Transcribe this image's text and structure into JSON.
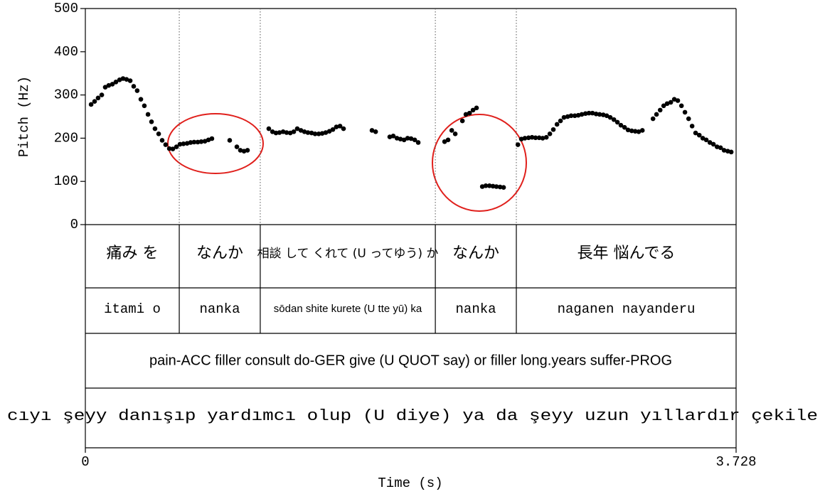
{
  "chart_data": {
    "type": "scatter",
    "xlabel": "Time (s)",
    "ylabel": "Pitch (Hz)",
    "xlim": [
      0,
      3.728
    ],
    "xticks": [
      0,
      3.728
    ],
    "ylim": [
      0,
      500
    ],
    "yticks": [
      0,
      100,
      200,
      300,
      400,
      500
    ],
    "color": "#000000",
    "x": [
      0.033,
      0.053,
      0.073,
      0.094,
      0.114,
      0.134,
      0.155,
      0.175,
      0.196,
      0.216,
      0.236,
      0.257,
      0.277,
      0.297,
      0.318,
      0.338,
      0.359,
      0.379,
      0.399,
      0.42,
      0.44,
      0.46,
      0.481,
      0.501,
      0.522,
      0.542,
      0.562,
      0.583,
      0.603,
      0.623,
      0.644,
      0.664,
      0.685,
      0.705,
      0.725,
      0.827,
      0.868,
      0.888,
      0.909,
      0.929,
      1.051,
      1.072,
      1.092,
      1.112,
      1.133,
      1.153,
      1.174,
      1.194,
      1.214,
      1.235,
      1.255,
      1.275,
      1.296,
      1.316,
      1.337,
      1.357,
      1.377,
      1.398,
      1.418,
      1.438,
      1.459,
      1.479,
      1.642,
      1.663,
      1.744,
      1.764,
      1.785,
      1.805,
      1.826,
      1.846,
      1.866,
      1.887,
      1.907,
      2.058,
      2.078,
      2.099,
      2.119,
      2.16,
      2.18,
      2.201,
      2.221,
      2.241,
      2.274,
      2.294,
      2.315,
      2.335,
      2.355,
      2.376,
      2.396,
      2.478,
      2.498,
      2.518,
      2.539,
      2.559,
      2.579,
      2.6,
      2.62,
      2.641,
      2.661,
      2.681,
      2.702,
      2.722,
      2.742,
      2.763,
      2.783,
      2.804,
      2.824,
      2.844,
      2.865,
      2.885,
      2.905,
      2.926,
      2.946,
      2.967,
      2.987,
      3.007,
      3.028,
      3.048,
      3.068,
      3.089,
      3.109,
      3.13,
      3.15,
      3.17,
      3.191,
      3.252,
      3.272,
      3.293,
      3.313,
      3.333,
      3.354,
      3.374,
      3.394,
      3.415,
      3.435,
      3.456,
      3.476,
      3.496,
      3.517,
      3.537,
      3.557,
      3.578,
      3.598,
      3.619,
      3.639,
      3.659,
      3.68,
      3.7
    ],
    "values": [
      278,
      285,
      293,
      300,
      318,
      322,
      325,
      330,
      335,
      338,
      336,
      333,
      320,
      310,
      290,
      275,
      255,
      238,
      222,
      210,
      195,
      185,
      176,
      175,
      180,
      186,
      187,
      188,
      190,
      191,
      191,
      192,
      193,
      196,
      199,
      195,
      180,
      172,
      170,
      172,
      222,
      215,
      212,
      213,
      215,
      213,
      212,
      215,
      222,
      218,
      215,
      213,
      212,
      210,
      210,
      211,
      213,
      216,
      220,
      226,
      228,
      222,
      218,
      215,
      203,
      205,
      200,
      198,
      196,
      200,
      199,
      196,
      190,
      192,
      196,
      218,
      210,
      240,
      255,
      258,
      265,
      270,
      88,
      90,
      90,
      89,
      88,
      87,
      86,
      185,
      198,
      200,
      201,
      202,
      201,
      201,
      200,
      202,
      210,
      220,
      232,
      240,
      248,
      250,
      252,
      252,
      253,
      255,
      257,
      258,
      258,
      256,
      255,
      254,
      252,
      248,
      243,
      237,
      230,
      225,
      219,
      217,
      216,
      215,
      218,
      245,
      255,
      265,
      275,
      280,
      283,
      290,
      287,
      275,
      260,
      245,
      228,
      212,
      207,
      200,
      196,
      190,
      186,
      180,
      178,
      172,
      170,
      168
    ],
    "tiers": {
      "boundaries": [
        0.538,
        1.002,
        2.005,
        2.469
      ],
      "rows": [
        [
          "痛み を",
          "なんか",
          "相談 して くれて (U ってゆう) か",
          "なんか",
          "長年 悩んでる"
        ],
        [
          "itami o",
          "nanka",
          "sōdan shite kurete (U tte yū) ka",
          "nanka",
          "naganen nayanderu"
        ],
        [
          "pain-ACC filler consult do-GER give (U QUOT say) or filler long.years suffer-PROG"
        ],
        [
          "cıyı şeyy danışıp yardımcı olup (U diye) ya da şeyy uzun yıllardır çekile"
        ]
      ]
    }
  }
}
